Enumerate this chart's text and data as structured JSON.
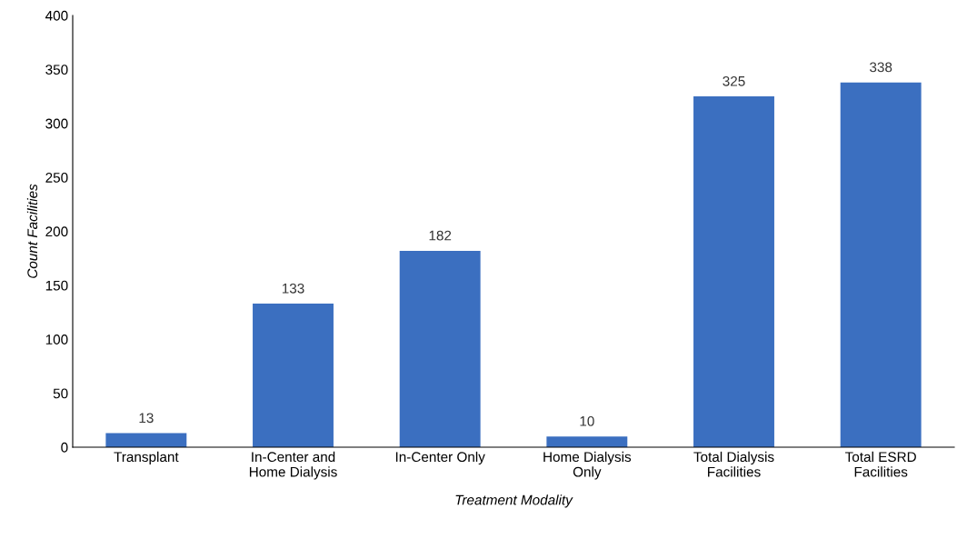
{
  "chart_data": {
    "type": "bar",
    "xlabel": "Treatment Modality",
    "ylabel": "Count Facilities",
    "categories": [
      "Transplant",
      "In-Center and\nHome Dialysis",
      "In-Center Only",
      "Home Dialysis\nOnly",
      "Total Dialysis\nFacilities",
      "Total ESRD\nFacilities"
    ],
    "values": [
      13,
      133,
      182,
      10,
      325,
      338
    ],
    "color": "#3b6fc0",
    "ylim": [
      0,
      400
    ],
    "yticks": [
      0,
      50,
      100,
      150,
      200,
      250,
      300,
      350,
      400
    ],
    "grid": false,
    "data_labels": true
  }
}
